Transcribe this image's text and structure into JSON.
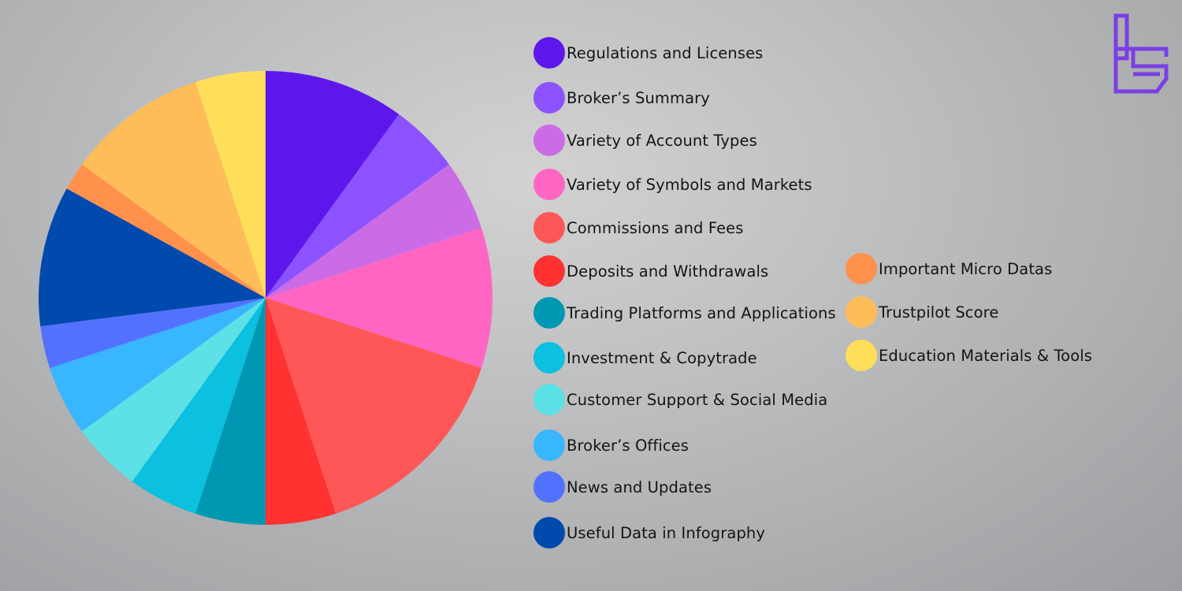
{
  "chart_data": {
    "type": "pie",
    "slices": [
      {
        "label": "Regulations and Licenses",
        "value": 10,
        "color": "#5e17eb"
      },
      {
        "label": "Broker’s Summary",
        "value": 5,
        "color": "#8c52ff"
      },
      {
        "label": "Variety of Account Types",
        "value": 5,
        "color": "#cb6ce6"
      },
      {
        "label": "Variety of Symbols and Markets",
        "value": 10,
        "color": "#ff66c4"
      },
      {
        "label": "Commissions and Fees",
        "value": 15,
        "color": "#ff5757"
      },
      {
        "label": "Deposits and Withdrawals",
        "value": 5,
        "color": "#ff3131"
      },
      {
        "label": "Trading Platforms and Applications",
        "value": 5,
        "color": "#0097b2"
      },
      {
        "label": "Investment & Copytrade",
        "value": 5,
        "color": "#0cc0df"
      },
      {
        "label": "Customer Support & Social Media",
        "value": 5,
        "color": "#5ce1e6"
      },
      {
        "label": "Broker’s Offices",
        "value": 5,
        "color": "#38b6ff"
      },
      {
        "label": "News and Updates",
        "value": 3,
        "color": "#5271ff"
      },
      {
        "label": "Useful Data in Infography",
        "value": 10,
        "color": "#004aad"
      },
      {
        "label": "Important Micro Datas",
        "value": 2,
        "color": "#ff914d"
      },
      {
        "label": "Trustpilot Score",
        "value": 10,
        "color": "#ffbd59"
      },
      {
        "label": "Education Materials & Tools",
        "value": 5,
        "color": "#ffde59"
      }
    ]
  },
  "logo": {
    "icon": "brand-logo-icon",
    "color": "#7b3fe4"
  }
}
